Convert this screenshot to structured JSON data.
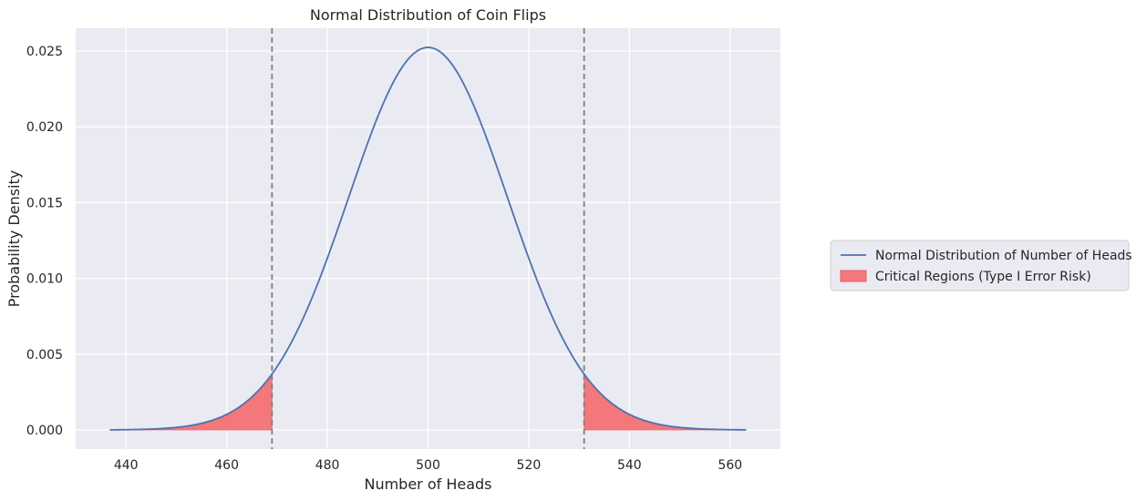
{
  "chart_data": {
    "type": "line",
    "title": "Normal Distribution of Coin Flips",
    "xlabel": "Number of Heads",
    "ylabel": "Probability Density",
    "xlim": [
      430,
      570
    ],
    "ylim": [
      -0.00126,
      0.0265
    ],
    "xticks": [
      440,
      460,
      480,
      500,
      520,
      540,
      560
    ],
    "yticks": [
      0.0,
      0.005,
      0.01,
      0.015,
      0.02,
      0.025
    ],
    "xtick_labels": [
      "440",
      "460",
      "480",
      "500",
      "520",
      "540",
      "560"
    ],
    "ytick_labels": [
      "0.000",
      "0.005",
      "0.010",
      "0.015",
      "0.020",
      "0.025"
    ],
    "grid": true,
    "legend_position": "right, outside plot",
    "series": [
      {
        "name": "Normal Distribution of Number of Heads",
        "kind": "line",
        "color": "#4c72b0",
        "distribution": {
          "mean": 500,
          "std": 15.81
        },
        "x_range": [
          436.8,
          563.2
        ]
      },
      {
        "name": "Critical Regions (Type I Error Risk)",
        "kind": "fill",
        "color": "#f4777a",
        "regions": [
          [
            436.8,
            469.0
          ],
          [
            531.0,
            563.2
          ]
        ]
      }
    ],
    "vlines": [
      {
        "x": 469.0,
        "style": "dashed",
        "color": "#808080"
      },
      {
        "x": 531.0,
        "style": "dashed",
        "color": "#808080"
      }
    ]
  }
}
